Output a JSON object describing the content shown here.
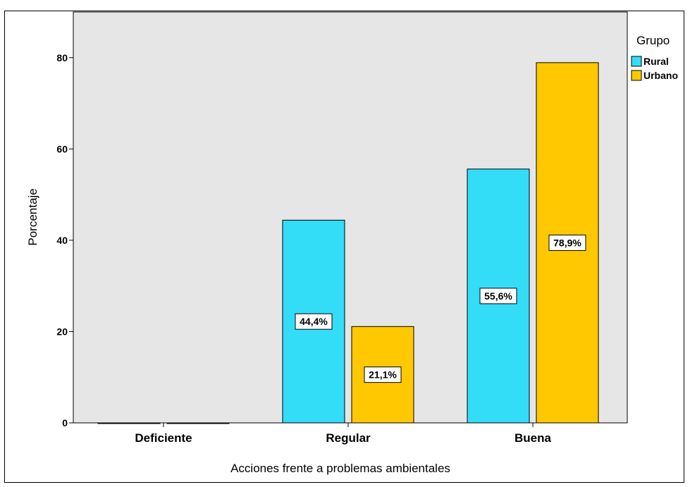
{
  "chart_data": {
    "type": "bar",
    "title": "",
    "xlabel": "Acciones frente a problemas ambientales",
    "ylabel": "Porcentaje",
    "categories": [
      "Deficiente",
      "Regular",
      "Buena"
    ],
    "ylim": [
      0,
      90
    ],
    "yticks": [
      0,
      20,
      40,
      60,
      80
    ],
    "grid": false,
    "legend_position": "top-right",
    "legend_title": "Grupo",
    "series": [
      {
        "name": "Rural",
        "color": "#33ddf7",
        "values": [
          0,
          44.4,
          55.6
        ],
        "labels": [
          "",
          "44,4%",
          "55,6%"
        ]
      },
      {
        "name": "Urbano",
        "color": "#ffc800",
        "values": [
          0,
          21.1,
          78.9
        ],
        "labels": [
          "",
          "21,1%",
          "78,9%"
        ]
      }
    ],
    "plot_background": "#e6e6e6"
  }
}
